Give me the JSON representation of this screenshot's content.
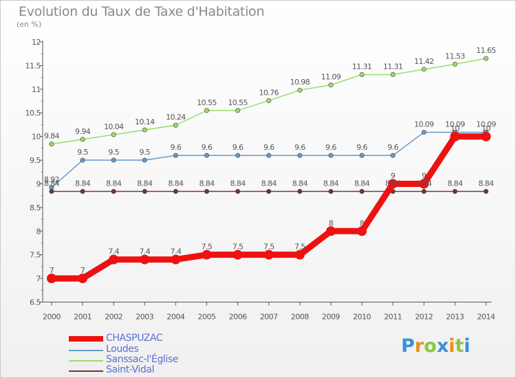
{
  "header": {
    "title": "Evolution du Taux de Taxe d'Habitation",
    "unit_label": "(en %)"
  },
  "logo": {
    "letters": [
      "P",
      "r",
      "o",
      "x",
      "i",
      "t",
      "i"
    ],
    "colors": [
      "#3a8fd9",
      "#f08c1a",
      "#8cc63f",
      "#3a8fd9",
      "#f08c1a",
      "#8cc63f",
      "#3a8fd9"
    ]
  },
  "chart_data": {
    "type": "line",
    "title": "Evolution du Taux de Taxe d'Habitation",
    "ylabel": "(en %)",
    "xlabel": "",
    "x": [
      "2000",
      "2001",
      "2002",
      "2003",
      "2004",
      "2005",
      "2006",
      "2007",
      "2008",
      "2009",
      "2010",
      "2011",
      "2012",
      "2013",
      "2014"
    ],
    "ylim": [
      6.5,
      12
    ],
    "yticks": [
      6.5,
      7,
      7.5,
      8,
      8.5,
      9,
      9.5,
      10,
      10.5,
      11,
      11.5,
      12
    ],
    "grid": false,
    "legend": "bottom-left",
    "series": [
      {
        "name": "CHASPUZAC",
        "color": "#ee1111",
        "values": [
          7,
          7,
          7.4,
          7.4,
          7.4,
          7.5,
          7.5,
          7.5,
          7.5,
          8,
          8,
          9,
          9,
          10,
          10
        ],
        "labels": [
          "7",
          "7",
          "7.4",
          "7.4",
          "7.4",
          "7.5",
          "7.5",
          "7.5",
          "7.5",
          "8",
          "8",
          "9",
          "9",
          "10",
          "10"
        ]
      },
      {
        "name": "Loudes",
        "color": "#6699cc",
        "values": [
          8.92,
          9.5,
          9.5,
          9.5,
          9.6,
          9.6,
          9.6,
          9.6,
          9.6,
          9.6,
          9.6,
          9.6,
          10.09,
          10.09,
          10.09
        ],
        "labels": [
          "8.92",
          "9.5",
          "9.5",
          "9.5",
          "9.6",
          "9.6",
          "9.6",
          "9.6",
          "9.6",
          "9.6",
          "9.6",
          "9.6",
          "10.09",
          "10.09",
          "10.09"
        ]
      },
      {
        "name": "Sanssac-l'Église",
        "color": "#99dd66",
        "values": [
          9.84,
          9.94,
          10.04,
          10.14,
          10.24,
          10.55,
          10.55,
          10.76,
          10.98,
          11.09,
          11.31,
          11.31,
          11.42,
          11.53,
          11.65
        ],
        "labels": [
          "9.84",
          "9.94",
          "10.04",
          "10.14",
          "10.24",
          "10.55",
          "10.55",
          "10.76",
          "10.98",
          "11.09",
          "11.31",
          "11.31",
          "11.42",
          "11.53",
          "11.65"
        ]
      },
      {
        "name": "Saint-Vidal",
        "color": "#773333",
        "values": [
          8.84,
          8.84,
          8.84,
          8.84,
          8.84,
          8.84,
          8.84,
          8.84,
          8.84,
          8.84,
          8.84,
          8.84,
          8.84,
          8.84,
          8.84
        ],
        "labels": [
          "8.84",
          "8.84",
          "8.84",
          "8.84",
          "8.84",
          "8.84",
          "8.84",
          "8.84",
          "8.84",
          "8.84",
          "8.84",
          "8.84",
          "8.84",
          "8.84",
          "8.84"
        ]
      }
    ]
  }
}
